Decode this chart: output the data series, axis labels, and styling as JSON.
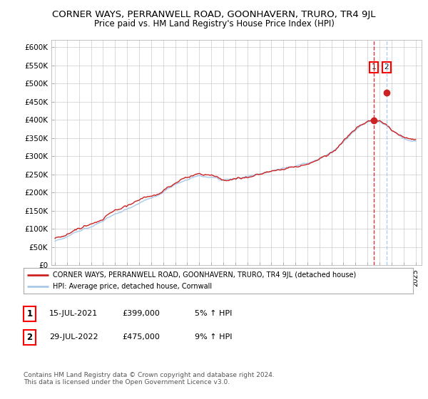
{
  "title": "CORNER WAYS, PERRANWELL ROAD, GOONHAVERN, TRURO, TR4 9JL",
  "subtitle": "Price paid vs. HM Land Registry's House Price Index (HPI)",
  "title_fontsize": 9.5,
  "subtitle_fontsize": 8.5,
  "ylim": [
    0,
    620000
  ],
  "yticks": [
    0,
    50000,
    100000,
    150000,
    200000,
    250000,
    300000,
    350000,
    400000,
    450000,
    500000,
    550000,
    600000
  ],
  "ytick_labels": [
    "£0",
    "£50K",
    "£100K",
    "£150K",
    "£200K",
    "£250K",
    "£300K",
    "£350K",
    "£400K",
    "£450K",
    "£500K",
    "£550K",
    "£600K"
  ],
  "hpi_color": "#a8c8e8",
  "price_color": "#cc2222",
  "vline1_color": "#cc2222",
  "vline2_color": "#a8c8e8",
  "point1_x": 2021.54,
  "point1_y": 399000,
  "point2_x": 2022.57,
  "point2_y": 475000,
  "legend_house_label": "CORNER WAYS, PERRANWELL ROAD, GOONHAVERN, TRURO, TR4 9JL (detached house)",
  "legend_hpi_label": "HPI: Average price, detached house, Cornwall",
  "table_row1": [
    "1",
    "15-JUL-2021",
    "£399,000",
    "5% ↑ HPI"
  ],
  "table_row2": [
    "2",
    "29-JUL-2022",
    "£475,000",
    "9% ↑ HPI"
  ],
  "footer": "Contains HM Land Registry data © Crown copyright and database right 2024.\nThis data is licensed under the Open Government Licence v3.0.",
  "background_color": "#ffffff",
  "grid_color": "#cccccc",
  "xlim_left": 1994.7,
  "xlim_right": 2025.5
}
